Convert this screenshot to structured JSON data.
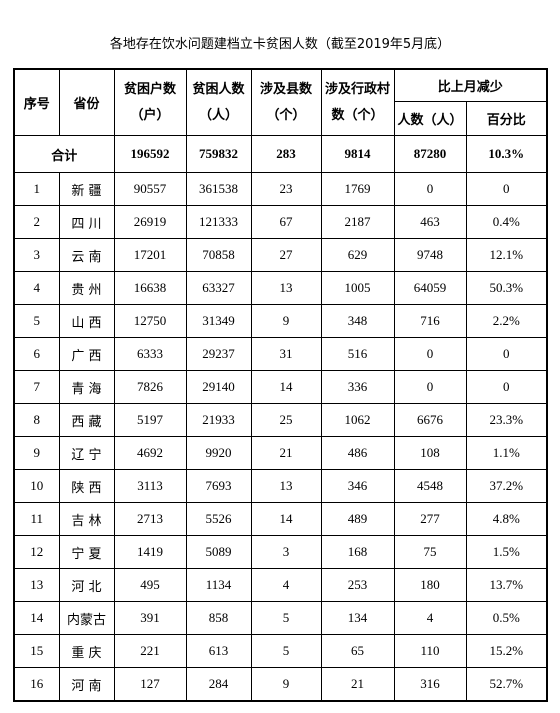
{
  "title": "各地存在饮水问题建档立卡贫困人数（截至2019年5月底）",
  "header": {
    "index": "序号",
    "province": "省份",
    "columns": [
      [
        "贫困户数",
        "（户）"
      ],
      [
        "贫困人数",
        "（人）"
      ],
      [
        "涉及县数",
        "（个）"
      ],
      [
        "涉及行政村",
        "数（个）"
      ]
    ],
    "group": "比上月减少",
    "sub": [
      "人数（人）",
      "百分比"
    ]
  },
  "total": {
    "label": "合计",
    "values": [
      196592,
      759832,
      283,
      9814,
      87280,
      "10.3%"
    ]
  },
  "rows": [
    [
      1,
      "新 疆",
      90557,
      361538,
      23,
      1769,
      0,
      "0"
    ],
    [
      2,
      "四 川",
      26919,
      121333,
      67,
      2187,
      463,
      "0.4%"
    ],
    [
      3,
      "云 南",
      17201,
      70858,
      27,
      629,
      9748,
      "12.1%"
    ],
    [
      4,
      "贵 州",
      16638,
      63327,
      13,
      1005,
      64059,
      "50.3%"
    ],
    [
      5,
      "山 西",
      12750,
      31349,
      9,
      348,
      716,
      "2.2%"
    ],
    [
      6,
      "广 西",
      6333,
      29237,
      31,
      516,
      0,
      "0"
    ],
    [
      7,
      "青 海",
      7826,
      29140,
      14,
      336,
      0,
      "0"
    ],
    [
      8,
      "西 藏",
      5197,
      21933,
      25,
      1062,
      6676,
      "23.3%"
    ],
    [
      9,
      "辽 宁",
      4692,
      9920,
      21,
      486,
      108,
      "1.1%"
    ],
    [
      10,
      "陕 西",
      3113,
      7693,
      13,
      346,
      4548,
      "37.2%"
    ],
    [
      11,
      "吉 林",
      2713,
      5526,
      14,
      489,
      277,
      "4.8%"
    ],
    [
      12,
      "宁 夏",
      1419,
      5089,
      3,
      168,
      75,
      "1.5%"
    ],
    [
      13,
      "河 北",
      495,
      1134,
      4,
      253,
      180,
      "13.7%"
    ],
    [
      14,
      "内蒙古",
      391,
      858,
      5,
      134,
      4,
      "0.5%"
    ],
    [
      15,
      "重 庆",
      221,
      613,
      5,
      65,
      110,
      "15.2%"
    ],
    [
      16,
      "河 南",
      127,
      284,
      9,
      21,
      316,
      "52.7%"
    ]
  ]
}
